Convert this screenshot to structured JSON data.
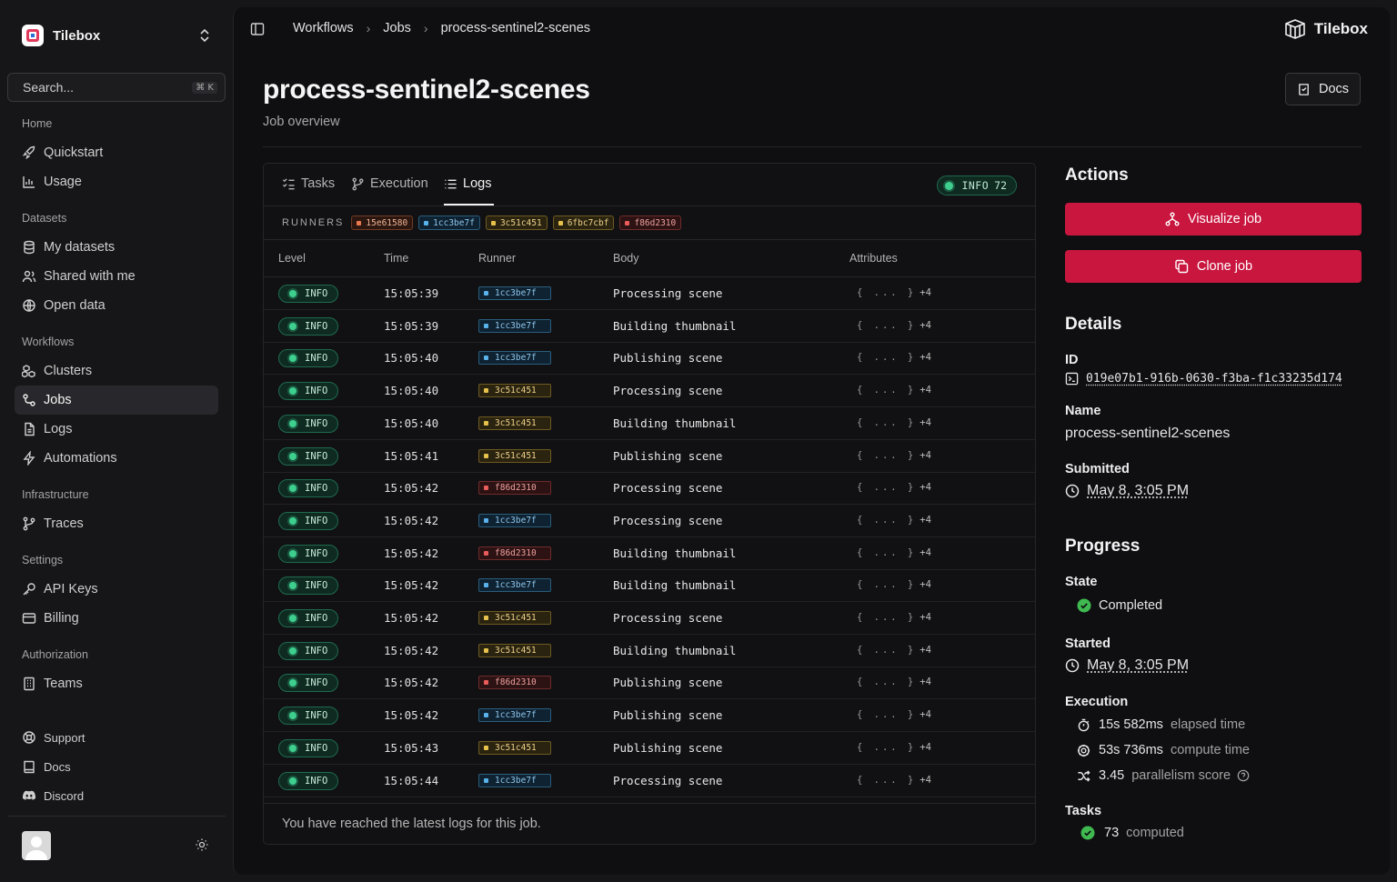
{
  "sidebar": {
    "org_name": "Tilebox",
    "search_placeholder": "Search...",
    "search_shortcut": "⌘ K",
    "sections": {
      "home": "Home",
      "datasets": "Datasets",
      "workflows": "Workflows",
      "infrastructure": "Infrastructure",
      "settings": "Settings",
      "authorization": "Authorization"
    },
    "items": {
      "quickstart": "Quickstart",
      "usage": "Usage",
      "my_datasets": "My datasets",
      "shared": "Shared with me",
      "open_data": "Open data",
      "clusters": "Clusters",
      "jobs": "Jobs",
      "logs": "Logs",
      "automations": "Automations",
      "traces": "Traces",
      "api_keys": "API Keys",
      "billing": "Billing",
      "teams": "Teams",
      "support": "Support",
      "docs": "Docs",
      "discord": "Discord"
    },
    "active_item": "Jobs"
  },
  "header": {
    "breadcrumbs": [
      "Workflows",
      "Jobs",
      "process-sentinel2-scenes"
    ],
    "brand": "Tilebox"
  },
  "page": {
    "title": "process-sentinel2-scenes",
    "subtitle": "Job overview",
    "docs_label": "Docs"
  },
  "logs": {
    "tabs": [
      "Tasks",
      "Execution",
      "Logs"
    ],
    "active_tab": "Logs",
    "level_badge": {
      "level": "INFO",
      "count": "72"
    },
    "runners_label": "RUNNERS",
    "runners": [
      {
        "id": "15e61580",
        "color": "orange"
      },
      {
        "id": "1cc3be7f",
        "color": "blue"
      },
      {
        "id": "3c51c451",
        "color": "yellow"
      },
      {
        "id": "6fbc7cbf",
        "color": "yellow"
      },
      {
        "id": "f86d2310",
        "color": "red"
      }
    ],
    "columns": [
      "Level",
      "Time",
      "Runner",
      "Body",
      "Attributes"
    ],
    "rows": [
      {
        "level": "INFO",
        "time": "15:05:39",
        "runner": "1cc3be7f",
        "color": "blue",
        "body": "Processing scene",
        "attrs": "{ ... }",
        "extra": "+4"
      },
      {
        "level": "INFO",
        "time": "15:05:39",
        "runner": "1cc3be7f",
        "color": "blue",
        "body": "Building thumbnail",
        "attrs": "{ ... }",
        "extra": "+4"
      },
      {
        "level": "INFO",
        "time": "15:05:40",
        "runner": "1cc3be7f",
        "color": "blue",
        "body": "Publishing scene",
        "attrs": "{ ... }",
        "extra": "+4"
      },
      {
        "level": "INFO",
        "time": "15:05:40",
        "runner": "3c51c451",
        "color": "yellow",
        "body": "Processing scene",
        "attrs": "{ ... }",
        "extra": "+4"
      },
      {
        "level": "INFO",
        "time": "15:05:40",
        "runner": "3c51c451",
        "color": "yellow",
        "body": "Building thumbnail",
        "attrs": "{ ... }",
        "extra": "+4"
      },
      {
        "level": "INFO",
        "time": "15:05:41",
        "runner": "3c51c451",
        "color": "yellow",
        "body": "Publishing scene",
        "attrs": "{ ... }",
        "extra": "+4"
      },
      {
        "level": "INFO",
        "time": "15:05:42",
        "runner": "f86d2310",
        "color": "red",
        "body": "Processing scene",
        "attrs": "{ ... }",
        "extra": "+4"
      },
      {
        "level": "INFO",
        "time": "15:05:42",
        "runner": "1cc3be7f",
        "color": "blue",
        "body": "Processing scene",
        "attrs": "{ ... }",
        "extra": "+4"
      },
      {
        "level": "INFO",
        "time": "15:05:42",
        "runner": "f86d2310",
        "color": "red",
        "body": "Building thumbnail",
        "attrs": "{ ... }",
        "extra": "+4"
      },
      {
        "level": "INFO",
        "time": "15:05:42",
        "runner": "1cc3be7f",
        "color": "blue",
        "body": "Building thumbnail",
        "attrs": "{ ... }",
        "extra": "+4"
      },
      {
        "level": "INFO",
        "time": "15:05:42",
        "runner": "3c51c451",
        "color": "yellow",
        "body": "Processing scene",
        "attrs": "{ ... }",
        "extra": "+4"
      },
      {
        "level": "INFO",
        "time": "15:05:42",
        "runner": "3c51c451",
        "color": "yellow",
        "body": "Building thumbnail",
        "attrs": "{ ... }",
        "extra": "+4"
      },
      {
        "level": "INFO",
        "time": "15:05:42",
        "runner": "f86d2310",
        "color": "red",
        "body": "Publishing scene",
        "attrs": "{ ... }",
        "extra": "+4"
      },
      {
        "level": "INFO",
        "time": "15:05:42",
        "runner": "1cc3be7f",
        "color": "blue",
        "body": "Publishing scene",
        "attrs": "{ ... }",
        "extra": "+4"
      },
      {
        "level": "INFO",
        "time": "15:05:43",
        "runner": "3c51c451",
        "color": "yellow",
        "body": "Publishing scene",
        "attrs": "{ ... }",
        "extra": "+4"
      },
      {
        "level": "INFO",
        "time": "15:05:44",
        "runner": "1cc3be7f",
        "color": "blue",
        "body": "Processing scene",
        "attrs": "{ ... }",
        "extra": "+4"
      }
    ],
    "footer": "You have reached the latest logs for this job."
  },
  "actions": {
    "title": "Actions",
    "visualize_label": "Visualize job",
    "clone_label": "Clone job",
    "button_color": "#c9163f"
  },
  "details": {
    "title": "Details",
    "id_label": "ID",
    "id_value": "019e07b1-916b-0630-f3ba-f1c33235d174",
    "name_label": "Name",
    "name_value": "process-sentinel2-scenes",
    "submitted_label": "Submitted",
    "submitted_value": "May 8, 3:05 PM"
  },
  "progress": {
    "title": "Progress",
    "state_label": "State",
    "state_value": "Completed",
    "started_label": "Started",
    "started_value": "May 8, 3:05 PM",
    "execution_label": "Execution",
    "elapsed_value": "15s 582ms",
    "elapsed_label": "elapsed time",
    "compute_value": "53s 736ms",
    "compute_label": "compute time",
    "parallelism_value": "3.45",
    "parallelism_label": "parallelism score",
    "tasks_label": "Tasks",
    "tasks_value": "73",
    "tasks_suffix": "computed"
  }
}
